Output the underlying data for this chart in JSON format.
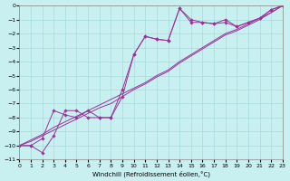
{
  "xlabel": "Windchill (Refroidissement éolien,°C)",
  "xlim": [
    0,
    23
  ],
  "ylim": [
    -11,
    0
  ],
  "xticks": [
    0,
    1,
    2,
    3,
    4,
    5,
    6,
    7,
    8,
    9,
    10,
    11,
    12,
    13,
    14,
    15,
    16,
    17,
    18,
    19,
    20,
    21,
    22,
    23
  ],
  "yticks": [
    0,
    -1,
    -2,
    -3,
    -4,
    -5,
    -6,
    -7,
    -8,
    -9,
    -10,
    -11
  ],
  "background_color": "#c8f0f0",
  "grid_color": "#a8dada",
  "line_color": "#993399",
  "line1_x": [
    0,
    1,
    2,
    3,
    4,
    5,
    6,
    7,
    8,
    9,
    10,
    11,
    12,
    13,
    14,
    15,
    16,
    17,
    18,
    19,
    20,
    21,
    22,
    23
  ],
  "line1_y": [
    -10.0,
    -10.0,
    -10.5,
    -9.3,
    -7.5,
    -7.5,
    -8.0,
    -8.0,
    -8.0,
    -6.5,
    -3.5,
    -2.2,
    -2.4,
    -2.5,
    -0.2,
    -1.2,
    -1.2,
    -1.3,
    -1.0,
    -1.5,
    -1.2,
    -0.9,
    -0.3,
    0.0
  ],
  "line2_x": [
    0,
    1,
    2,
    3,
    4,
    5,
    6,
    7,
    8,
    9,
    10,
    11,
    12,
    13,
    14,
    15,
    16,
    17,
    18,
    19,
    20,
    21,
    22,
    23
  ],
  "line2_y": [
    -10.0,
    -10.0,
    -9.5,
    -7.5,
    -7.8,
    -8.0,
    -7.5,
    -8.0,
    -8.0,
    -6.0,
    -3.5,
    -2.2,
    -2.4,
    -2.5,
    -0.2,
    -1.0,
    -1.2,
    -1.3,
    -1.2,
    -1.5,
    -1.2,
    -0.9,
    -0.3,
    0.0
  ],
  "line3_x": [
    0,
    23
  ],
  "line3_y": [
    -10.0,
    0.0
  ],
  "line4_x": [
    0,
    23
  ],
  "line4_y": [
    -10.0,
    0.0
  ],
  "diag1_x": [
    0,
    1,
    2,
    3,
    4,
    5,
    6,
    7,
    8,
    9,
    10,
    11,
    12,
    13,
    14,
    15,
    16,
    17,
    18,
    19,
    20,
    21,
    22,
    23
  ],
  "diag1_y": [
    -10.0,
    -9.6,
    -9.2,
    -8.7,
    -8.3,
    -7.9,
    -7.5,
    -7.1,
    -6.7,
    -6.3,
    -5.9,
    -5.5,
    -5.0,
    -4.6,
    -4.0,
    -3.5,
    -3.0,
    -2.5,
    -2.0,
    -1.7,
    -1.3,
    -0.9,
    -0.5,
    0.0
  ],
  "diag2_x": [
    0,
    1,
    2,
    3,
    4,
    5,
    6,
    7,
    8,
    9,
    10,
    11,
    12,
    13,
    14,
    15,
    16,
    17,
    18,
    19,
    20,
    21,
    22,
    23
  ],
  "diag2_y": [
    -10.0,
    -9.7,
    -9.3,
    -8.9,
    -8.5,
    -8.1,
    -7.7,
    -7.3,
    -7.0,
    -6.5,
    -6.0,
    -5.6,
    -5.1,
    -4.7,
    -4.1,
    -3.6,
    -3.1,
    -2.6,
    -2.1,
    -1.8,
    -1.4,
    -1.0,
    -0.5,
    0.0
  ]
}
